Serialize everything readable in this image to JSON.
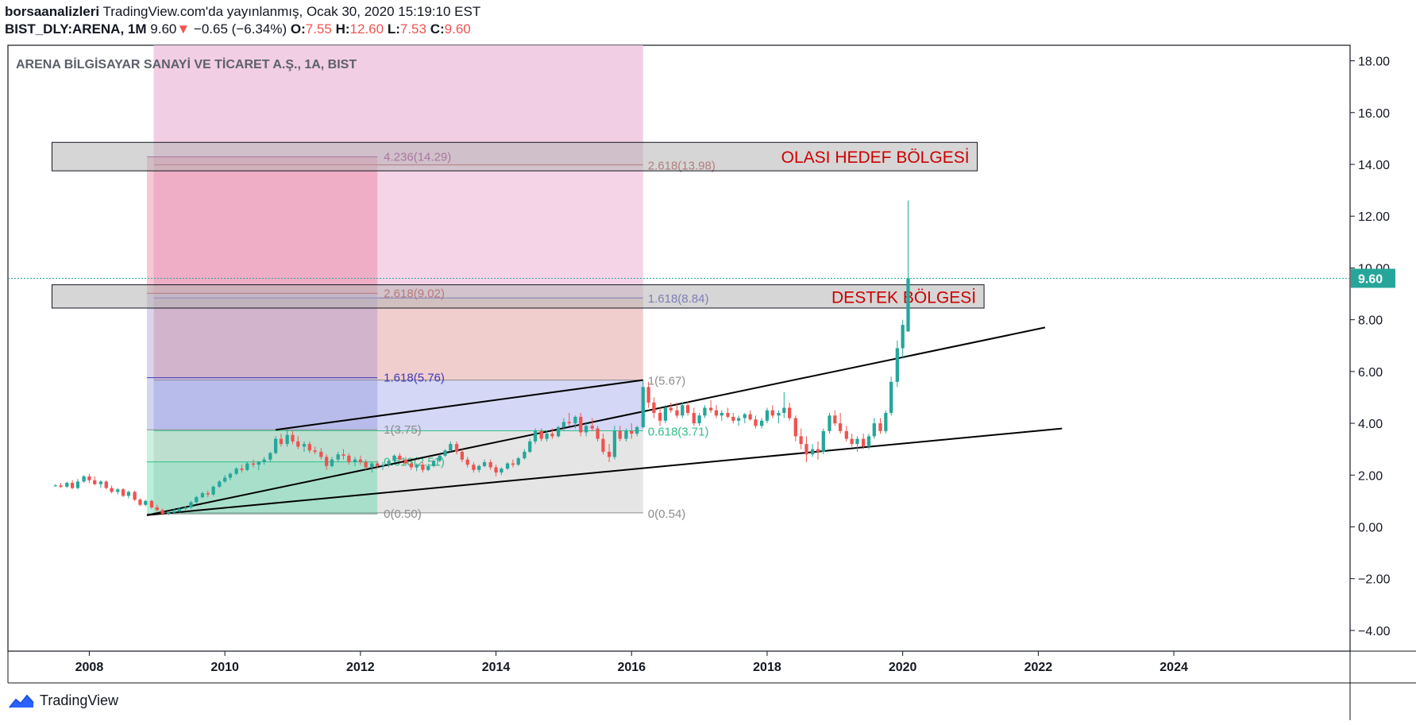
{
  "header": {
    "publisher": "borsaanalizleri",
    "published_text": " TradingView.com'da yayınlanmış, Ocak 30, 2020 15:19:10 EST",
    "symbol": "BIST_DLY:ARENA, 1M",
    "last": "9.60",
    "change_arrow": "▼",
    "change": "−0.65 (−6.34%)",
    "o_label": "O:",
    "o_val": "7.55",
    "h_label": "H:",
    "h_val": "12.60",
    "l_label": "L:",
    "l_val": "7.53",
    "c_label": "C:",
    "c_val": "9.60"
  },
  "chart_title": "ARENA BİLGİSAYAR SANAYİ VE TİCARET A.Ş., 1A, BIST",
  "footer": {
    "brand": "TradingView"
  },
  "colors": {
    "up": "#26a69a",
    "down": "#ef5350",
    "axis": "#131722",
    "fib1_box_top": "#e46f8e",
    "fib1_box_mid": "#8c91d8",
    "fib1_box_low": "#44d6a0",
    "zone_box": "#b4b4b4",
    "zone_text": "#cc0000"
  },
  "chart_data": {
    "type": "candlestick",
    "title": "ARENA BİLGİSAYAR SANAYİ VE TİCARET A.Ş., 1A, BIST",
    "x_range": [
      2006.8,
      2026.6
    ],
    "y_range": [
      -4.8,
      18.6
    ],
    "y_ticks": [
      "18.00",
      "16.00",
      "14.00",
      "12.00",
      "10.00",
      "8.00",
      "6.00",
      "4.00",
      "2.00",
      "0.00",
      "−2.00",
      "−4.00"
    ],
    "x_ticks": [
      "2008",
      "2010",
      "2012",
      "2014",
      "2016",
      "2018",
      "2020",
      "2022",
      "2024"
    ],
    "last_price_label": "9.60",
    "last_price": 9.6,
    "candles": [
      [
        2007.5,
        1.6,
        1.65,
        1.55,
        1.6
      ],
      [
        2007.58,
        1.6,
        1.7,
        1.5,
        1.55
      ],
      [
        2007.67,
        1.55,
        1.75,
        1.5,
        1.7
      ],
      [
        2007.75,
        1.7,
        1.8,
        1.45,
        1.5
      ],
      [
        2007.83,
        1.5,
        1.85,
        1.45,
        1.75
      ],
      [
        2007.92,
        1.75,
        2.0,
        1.7,
        1.95
      ],
      [
        2008.0,
        1.95,
        2.05,
        1.7,
        1.8
      ],
      [
        2008.08,
        1.8,
        1.95,
        1.6,
        1.65
      ],
      [
        2008.17,
        1.65,
        1.8,
        1.5,
        1.75
      ],
      [
        2008.25,
        1.75,
        1.8,
        1.45,
        1.5
      ],
      [
        2008.33,
        1.5,
        1.6,
        1.3,
        1.35
      ],
      [
        2008.42,
        1.35,
        1.5,
        1.25,
        1.45
      ],
      [
        2008.5,
        1.45,
        1.5,
        1.15,
        1.2
      ],
      [
        2008.58,
        1.2,
        1.4,
        1.1,
        1.35
      ],
      [
        2008.67,
        1.35,
        1.4,
        1.0,
        1.05
      ],
      [
        2008.75,
        1.05,
        1.1,
        0.8,
        0.85
      ],
      [
        2008.83,
        0.85,
        1.05,
        0.8,
        1.0
      ],
      [
        2008.92,
        1.0,
        1.05,
        0.7,
        0.75
      ],
      [
        2009.0,
        0.75,
        0.85,
        0.6,
        0.65
      ],
      [
        2009.08,
        0.65,
        0.7,
        0.45,
        0.5
      ],
      [
        2009.17,
        0.5,
        0.6,
        0.45,
        0.55
      ],
      [
        2009.25,
        0.55,
        0.7,
        0.5,
        0.6
      ],
      [
        2009.33,
        0.6,
        0.75,
        0.55,
        0.7
      ],
      [
        2009.42,
        0.7,
        0.8,
        0.65,
        0.75
      ],
      [
        2009.5,
        0.75,
        1.0,
        0.7,
        0.95
      ],
      [
        2009.58,
        0.95,
        1.2,
        0.9,
        1.15
      ],
      [
        2009.67,
        1.15,
        1.35,
        1.1,
        1.3
      ],
      [
        2009.75,
        1.3,
        1.4,
        1.15,
        1.25
      ],
      [
        2009.83,
        1.25,
        1.6,
        1.2,
        1.55
      ],
      [
        2009.92,
        1.55,
        1.8,
        1.5,
        1.75
      ],
      [
        2010.0,
        1.75,
        2.0,
        1.7,
        1.9
      ],
      [
        2010.08,
        1.9,
        2.1,
        1.8,
        2.05
      ],
      [
        2010.17,
        2.05,
        2.3,
        2.0,
        2.25
      ],
      [
        2010.25,
        2.25,
        2.4,
        2.1,
        2.2
      ],
      [
        2010.33,
        2.2,
        2.5,
        2.15,
        2.45
      ],
      [
        2010.42,
        2.45,
        2.6,
        2.3,
        2.4
      ],
      [
        2010.5,
        2.4,
        2.55,
        2.2,
        2.5
      ],
      [
        2010.58,
        2.5,
        2.7,
        2.4,
        2.6
      ],
      [
        2010.67,
        2.6,
        2.9,
        2.5,
        2.85
      ],
      [
        2010.75,
        2.85,
        3.5,
        2.8,
        3.4
      ],
      [
        2010.83,
        3.4,
        3.6,
        3.1,
        3.2
      ],
      [
        2010.92,
        3.2,
        3.75,
        3.1,
        3.55
      ],
      [
        2011.0,
        3.55,
        3.7,
        3.2,
        3.3
      ],
      [
        2011.08,
        3.3,
        3.5,
        3.0,
        3.1
      ],
      [
        2011.17,
        3.1,
        3.3,
        2.9,
        3.2
      ],
      [
        2011.25,
        3.2,
        3.3,
        2.85,
        2.95
      ],
      [
        2011.33,
        2.95,
        3.1,
        2.8,
        2.9
      ],
      [
        2011.42,
        2.9,
        3.05,
        2.6,
        2.7
      ],
      [
        2011.5,
        2.7,
        2.8,
        2.2,
        2.35
      ],
      [
        2011.58,
        2.35,
        2.7,
        2.3,
        2.6
      ],
      [
        2011.67,
        2.6,
        2.9,
        2.5,
        2.8
      ],
      [
        2011.75,
        2.8,
        3.0,
        2.6,
        2.75
      ],
      [
        2011.83,
        2.75,
        2.85,
        2.4,
        2.5
      ],
      [
        2011.92,
        2.5,
        2.7,
        2.35,
        2.6
      ],
      [
        2012.0,
        2.6,
        2.75,
        2.4,
        2.5
      ],
      [
        2012.08,
        2.5,
        2.6,
        2.2,
        2.3
      ],
      [
        2012.17,
        2.3,
        2.5,
        2.1,
        2.45
      ],
      [
        2012.25,
        2.45,
        2.55,
        2.25,
        2.35
      ],
      [
        2012.33,
        2.35,
        2.5,
        2.2,
        2.4
      ],
      [
        2012.42,
        2.4,
        2.6,
        2.3,
        2.55
      ],
      [
        2012.5,
        2.55,
        2.8,
        2.5,
        2.75
      ],
      [
        2012.58,
        2.75,
        2.85,
        2.5,
        2.6
      ],
      [
        2012.67,
        2.6,
        2.7,
        2.4,
        2.45
      ],
      [
        2012.75,
        2.45,
        2.55,
        2.2,
        2.3
      ],
      [
        2012.83,
        2.3,
        2.45,
        2.15,
        2.4
      ],
      [
        2012.92,
        2.4,
        2.5,
        2.1,
        2.2
      ],
      [
        2013.0,
        2.2,
        2.4,
        2.15,
        2.35
      ],
      [
        2013.08,
        2.35,
        2.6,
        2.3,
        2.55
      ],
      [
        2013.17,
        2.55,
        2.8,
        2.5,
        2.75
      ],
      [
        2013.25,
        2.75,
        3.0,
        2.7,
        2.95
      ],
      [
        2013.33,
        2.95,
        3.3,
        2.9,
        3.2
      ],
      [
        2013.42,
        3.2,
        3.3,
        2.8,
        2.9
      ],
      [
        2013.5,
        2.9,
        3.0,
        2.5,
        2.6
      ],
      [
        2013.58,
        2.6,
        2.7,
        2.3,
        2.4
      ],
      [
        2013.67,
        2.4,
        2.5,
        2.1,
        2.2
      ],
      [
        2013.75,
        2.2,
        2.4,
        2.1,
        2.35
      ],
      [
        2013.83,
        2.35,
        2.6,
        2.3,
        2.5
      ],
      [
        2013.92,
        2.5,
        2.6,
        2.2,
        2.3
      ],
      [
        2014.0,
        2.3,
        2.4,
        1.95,
        2.1
      ],
      [
        2014.08,
        2.1,
        2.3,
        2.0,
        2.25
      ],
      [
        2014.17,
        2.25,
        2.5,
        2.2,
        2.45
      ],
      [
        2014.25,
        2.45,
        2.6,
        2.3,
        2.4
      ],
      [
        2014.33,
        2.4,
        2.7,
        2.35,
        2.65
      ],
      [
        2014.42,
        2.65,
        3.0,
        2.6,
        2.9
      ],
      [
        2014.5,
        2.9,
        3.4,
        2.85,
        3.3
      ],
      [
        2014.58,
        3.3,
        3.8,
        3.2,
        3.7
      ],
      [
        2014.67,
        3.7,
        3.8,
        3.3,
        3.4
      ],
      [
        2014.75,
        3.4,
        3.7,
        3.3,
        3.6
      ],
      [
        2014.83,
        3.6,
        3.8,
        3.4,
        3.5
      ],
      [
        2014.92,
        3.5,
        3.9,
        3.45,
        3.85
      ],
      [
        2015.0,
        3.85,
        4.2,
        3.7,
        4.05
      ],
      [
        2015.08,
        4.05,
        4.4,
        3.9,
        4.0
      ],
      [
        2015.17,
        4.0,
        4.3,
        3.8,
        4.25
      ],
      [
        2015.25,
        4.25,
        4.4,
        3.5,
        3.65
      ],
      [
        2015.33,
        3.65,
        4.0,
        3.5,
        3.9
      ],
      [
        2015.42,
        3.9,
        4.2,
        3.7,
        3.8
      ],
      [
        2015.5,
        3.8,
        3.9,
        3.3,
        3.4
      ],
      [
        2015.58,
        3.4,
        3.6,
        2.8,
        2.9
      ],
      [
        2015.67,
        2.9,
        3.2,
        2.5,
        2.7
      ],
      [
        2015.75,
        2.7,
        3.9,
        2.6,
        3.7
      ],
      [
        2015.83,
        3.7,
        3.9,
        3.3,
        3.4
      ],
      [
        2015.92,
        3.4,
        3.8,
        3.3,
        3.7
      ],
      [
        2016.0,
        3.7,
        4.0,
        3.4,
        3.6
      ],
      [
        2016.08,
        3.6,
        3.9,
        3.5,
        3.85
      ],
      [
        2016.17,
        3.85,
        5.67,
        3.8,
        5.4
      ],
      [
        2016.25,
        5.4,
        5.6,
        4.6,
        4.8
      ],
      [
        2016.33,
        4.8,
        5.0,
        4.2,
        4.4
      ],
      [
        2016.42,
        4.4,
        4.6,
        3.9,
        4.1
      ],
      [
        2016.5,
        4.1,
        4.7,
        4.0,
        4.6
      ],
      [
        2016.58,
        4.6,
        4.8,
        4.4,
        4.5
      ],
      [
        2016.67,
        4.5,
        4.8,
        4.2,
        4.3
      ],
      [
        2016.75,
        4.3,
        4.8,
        4.2,
        4.7
      ],
      [
        2016.83,
        4.7,
        4.85,
        4.3,
        4.4
      ],
      [
        2016.92,
        4.4,
        4.6,
        3.9,
        4.0
      ],
      [
        2017.0,
        4.0,
        4.4,
        3.9,
        4.3
      ],
      [
        2017.08,
        4.3,
        4.7,
        4.2,
        4.6
      ],
      [
        2017.17,
        4.6,
        4.9,
        4.4,
        4.5
      ],
      [
        2017.25,
        4.5,
        4.7,
        4.2,
        4.3
      ],
      [
        2017.33,
        4.3,
        4.5,
        4.1,
        4.4
      ],
      [
        2017.42,
        4.4,
        4.6,
        4.2,
        4.25
      ],
      [
        2017.5,
        4.25,
        4.4,
        4.0,
        4.1
      ],
      [
        2017.58,
        4.1,
        4.3,
        3.9,
        4.2
      ],
      [
        2017.67,
        4.2,
        4.4,
        4.0,
        4.35
      ],
      [
        2017.75,
        4.35,
        4.5,
        4.1,
        4.15
      ],
      [
        2017.83,
        4.15,
        4.3,
        3.8,
        3.9
      ],
      [
        2017.92,
        3.9,
        4.2,
        3.8,
        4.1
      ],
      [
        2018.0,
        4.1,
        4.6,
        4.0,
        4.5
      ],
      [
        2018.08,
        4.5,
        4.7,
        4.2,
        4.3
      ],
      [
        2018.17,
        4.3,
        4.5,
        4.0,
        4.4
      ],
      [
        2018.25,
        4.4,
        5.2,
        4.2,
        4.6
      ],
      [
        2018.33,
        4.6,
        4.8,
        4.1,
        4.2
      ],
      [
        2018.42,
        4.2,
        4.3,
        3.3,
        3.5
      ],
      [
        2018.5,
        3.5,
        3.8,
        3.0,
        3.2
      ],
      [
        2018.58,
        3.2,
        3.5,
        2.5,
        2.8
      ],
      [
        2018.67,
        2.8,
        3.2,
        2.7,
        3.0
      ],
      [
        2018.75,
        3.0,
        3.3,
        2.6,
        2.9
      ],
      [
        2018.83,
        2.9,
        3.8,
        2.8,
        3.7
      ],
      [
        2018.92,
        3.7,
        4.4,
        3.6,
        4.3
      ],
      [
        2019.0,
        4.3,
        4.5,
        3.9,
        4.0
      ],
      [
        2019.08,
        4.0,
        4.4,
        3.6,
        3.7
      ],
      [
        2019.17,
        3.7,
        3.9,
        3.3,
        3.4
      ],
      [
        2019.25,
        3.4,
        3.6,
        3.1,
        3.2
      ],
      [
        2019.33,
        3.2,
        3.5,
        2.9,
        3.4
      ],
      [
        2019.42,
        3.4,
        3.6,
        3.0,
        3.1
      ],
      [
        2019.5,
        3.1,
        3.6,
        3.0,
        3.5
      ],
      [
        2019.58,
        3.5,
        4.2,
        3.4,
        4.0
      ],
      [
        2019.67,
        4.0,
        4.2,
        3.6,
        3.7
      ],
      [
        2019.75,
        3.7,
        4.5,
        3.6,
        4.4
      ],
      [
        2019.83,
        4.4,
        5.8,
        4.3,
        5.6
      ],
      [
        2019.92,
        5.6,
        7.2,
        5.4,
        6.9
      ],
      [
        2020.0,
        6.9,
        8.0,
        6.5,
        7.8
      ],
      [
        2020.08,
        7.55,
        12.6,
        7.53,
        9.6
      ]
    ],
    "fib_extension_1": {
      "levels": [
        {
          "label": "4.236(14.29)",
          "value": 14.29
        },
        {
          "label": "2.618(9.02)",
          "value": 9.02
        },
        {
          "label": "1.618(5.76)",
          "value": 5.76
        },
        {
          "label": "1(3.75)",
          "value": 3.75
        },
        {
          "label": "0.618(2.51)",
          "value": 2.51
        },
        {
          "label": "0(0.50)",
          "value": 0.5
        }
      ],
      "x_start": 2008.85,
      "x_end": 2012.25
    },
    "fib_extension_2": {
      "levels": [
        {
          "label": "2.618(13.98)",
          "value": 13.98
        },
        {
          "label": "1.618(8.84)",
          "value": 8.84
        },
        {
          "label": "1(5.67)",
          "value": 5.67
        },
        {
          "label": "0.618(3.71)",
          "value": 3.71
        },
        {
          "label": "0(0.54)",
          "value": 0.54
        }
      ],
      "x_start": 2008.95,
      "x_end": 2016.17
    },
    "zones": [
      {
        "label": "OLASI HEDEF BÖLGESİ",
        "top": 14.85,
        "bottom": 13.75,
        "x_start": 2007.45,
        "x_end": 2021.1
      },
      {
        "label": "DESTEK BÖLGESİ",
        "top": 9.35,
        "bottom": 8.45,
        "x_start": 2007.45,
        "x_end": 2021.2
      }
    ],
    "trendlines": [
      {
        "from": [
          2008.85,
          0.45
        ],
        "to": [
          2022.1,
          7.7
        ]
      },
      {
        "from": [
          2008.85,
          0.45
        ],
        "to": [
          2022.35,
          3.8
        ]
      },
      {
        "from": [
          2010.75,
          3.75
        ],
        "to": [
          2016.17,
          5.67
        ]
      }
    ]
  }
}
